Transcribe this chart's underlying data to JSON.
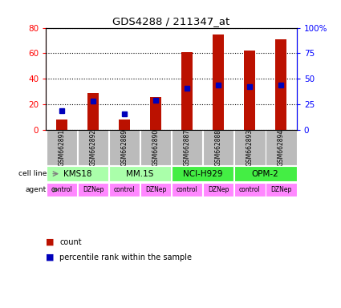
{
  "title": "GDS4288 / 211347_at",
  "samples": [
    "GSM662891",
    "GSM662892",
    "GSM662889",
    "GSM662890",
    "GSM662887",
    "GSM662888",
    "GSM662893",
    "GSM662894"
  ],
  "counts": [
    8,
    29,
    8,
    26,
    61,
    75,
    62,
    71
  ],
  "percentile_ranks": [
    19,
    28,
    16,
    29,
    41,
    44,
    42,
    44
  ],
  "ylim_left": [
    0,
    80
  ],
  "ylim_right": [
    0,
    100
  ],
  "yticks_left": [
    0,
    20,
    40,
    60,
    80
  ],
  "ytick_labels_left": [
    "0",
    "20",
    "40",
    "60",
    "80"
  ],
  "yticks_right": [
    0,
    25,
    50,
    75,
    100
  ],
  "ytick_labels_right": [
    "0",
    "25",
    "50",
    "75",
    "100%"
  ],
  "cell_lines": [
    {
      "name": "KMS18",
      "cols": [
        0,
        1
      ],
      "color": "#AAFFAA"
    },
    {
      "name": "MM.1S",
      "cols": [
        2,
        3
      ],
      "color": "#AAFFAA"
    },
    {
      "name": "NCI-H929",
      "cols": [
        4,
        5
      ],
      "color": "#44EE44"
    },
    {
      "name": "OPM-2",
      "cols": [
        6,
        7
      ],
      "color": "#44EE44"
    }
  ],
  "agents": [
    "control",
    "DZNep",
    "control",
    "DZNep",
    "control",
    "DZNep",
    "control",
    "DZNep"
  ],
  "agent_color": "#FF88FF",
  "bar_color": "#BB1100",
  "marker_color": "#0000BB",
  "sample_bg_color": "#BBBBBB",
  "legend_count_color": "#BB1100",
  "legend_pct_color": "#0000BB"
}
